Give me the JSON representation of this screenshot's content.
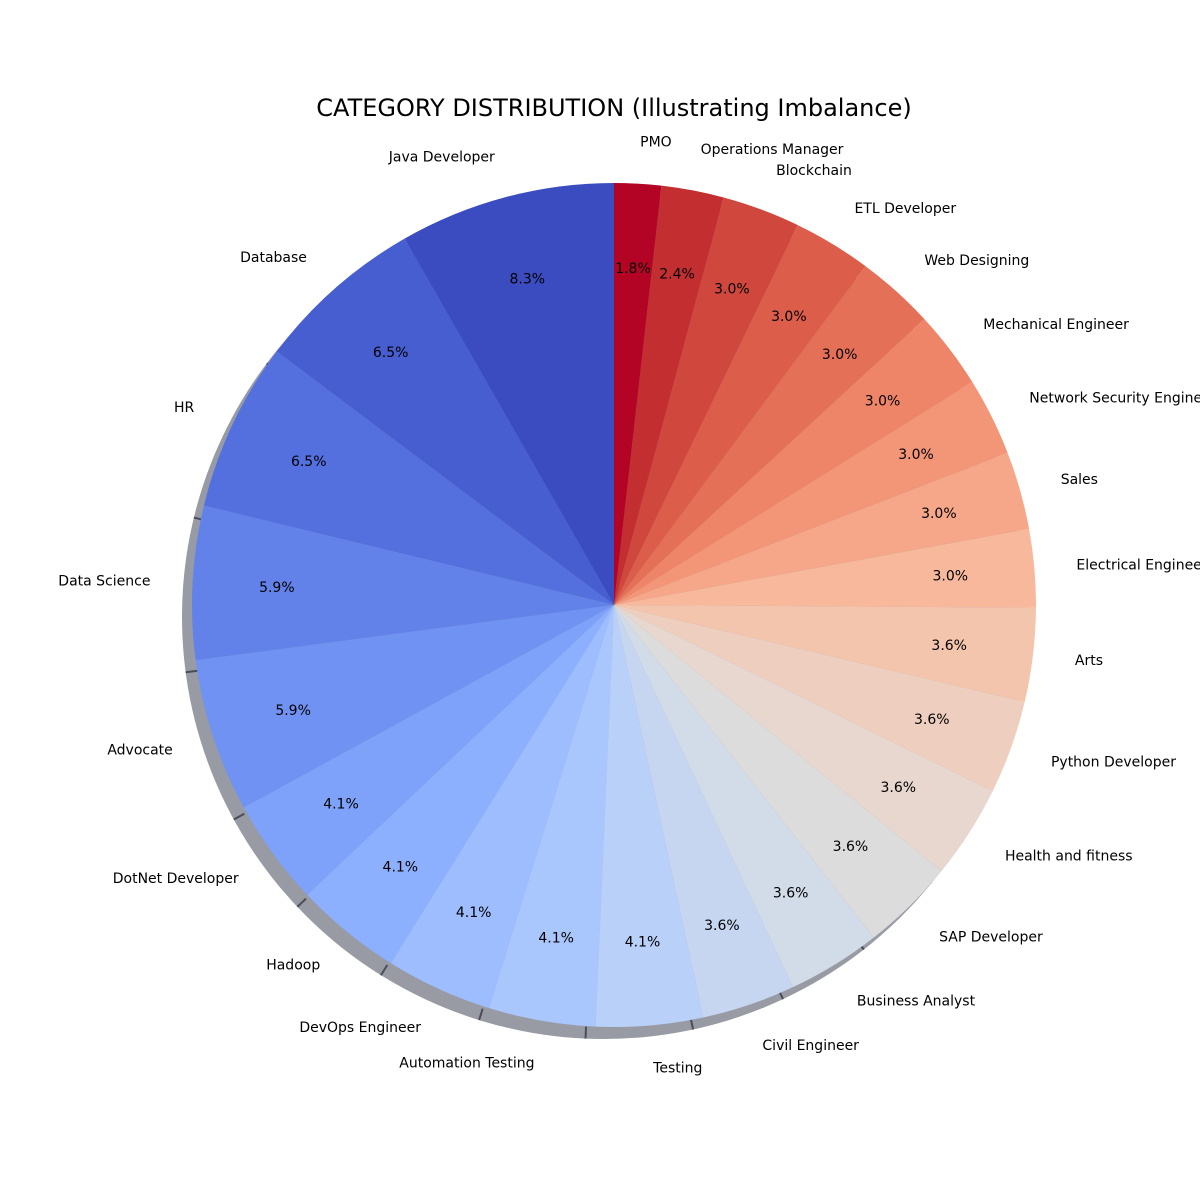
{
  "chart_data": {
    "type": "pie",
    "title": "CATEGORY DISTRIBUTION (Illustrating Imbalance)",
    "start_angle_deg": 90,
    "direction": "counterclockwise",
    "shadow": true,
    "colormap": "coolwarm",
    "slices": [
      {
        "label": "Java Developer",
        "value": 8.3,
        "pct_label": "8.3%",
        "color": "#3b4cc0"
      },
      {
        "label": "Database",
        "value": 6.5,
        "pct_label": "6.5%",
        "color": "#465ecf"
      },
      {
        "label": "HR",
        "value": 6.5,
        "pct_label": "6.5%",
        "color": "#5470de"
      },
      {
        "label": "Data Science",
        "value": 5.9,
        "pct_label": "5.9%",
        "color": "#6282ea"
      },
      {
        "label": "Advocate",
        "value": 5.9,
        "pct_label": "5.9%",
        "color": "#6f92f3"
      },
      {
        "label": "DotNet Developer",
        "value": 4.1,
        "pct_label": "4.1%",
        "color": "#7ea1fa"
      },
      {
        "label": "Hadoop",
        "value": 4.1,
        "pct_label": "4.1%",
        "color": "#8db0fe"
      },
      {
        "label": "DevOps Engineer",
        "value": 4.1,
        "pct_label": "4.1%",
        "color": "#9dbdff"
      },
      {
        "label": "Automation Testing",
        "value": 4.1,
        "pct_label": "4.1%",
        "color": "#aac7fd"
      },
      {
        "label": "Testing",
        "value": 4.1,
        "pct_label": "4.1%",
        "color": "#b9d0f9"
      },
      {
        "label": "Civil Engineer",
        "value": 3.6,
        "pct_label": "3.6%",
        "color": "#c6d6f1"
      },
      {
        "label": "Business Analyst",
        "value": 3.6,
        "pct_label": "3.6%",
        "color": "#d2dbe8"
      },
      {
        "label": "SAP Developer",
        "value": 3.6,
        "pct_label": "3.6%",
        "color": "#dddcdc"
      },
      {
        "label": "Health and fitness",
        "value": 3.6,
        "pct_label": "3.6%",
        "color": "#e7d7ce"
      },
      {
        "label": "Python Developer",
        "value": 3.6,
        "pct_label": "3.6%",
        "color": "#eecfbf"
      },
      {
        "label": "Arts",
        "value": 3.6,
        "pct_label": "3.6%",
        "color": "#f4c5ad"
      },
      {
        "label": "Electrical Engineering",
        "value": 3.0,
        "pct_label": "3.0%",
        "color": "#f7b89c"
      },
      {
        "label": "Sales",
        "value": 3.0,
        "pct_label": "3.0%",
        "color": "#f6a789"
      },
      {
        "label": "Network Security Engineer",
        "value": 3.0,
        "pct_label": "3.0%",
        "color": "#f39577"
      },
      {
        "label": "Mechanical Engineer",
        "value": 3.0,
        "pct_label": "3.0%",
        "color": "#ee8468"
      },
      {
        "label": "Web Designing",
        "value": 3.0,
        "pct_label": "3.0%",
        "color": "#e57058"
      },
      {
        "label": "ETL Developer",
        "value": 3.0,
        "pct_label": "3.0%",
        "color": "#dc5d4a"
      },
      {
        "label": "Blockchain",
        "value": 3.0,
        "pct_label": "3.0%",
        "color": "#d0473d"
      },
      {
        "label": "Operations Manager",
        "value": 2.4,
        "pct_label": "2.4%",
        "color": "#c32e31"
      },
      {
        "label": "PMO",
        "value": 1.8,
        "pct_label": "1.8%",
        "color": "#b40426"
      }
    ]
  }
}
